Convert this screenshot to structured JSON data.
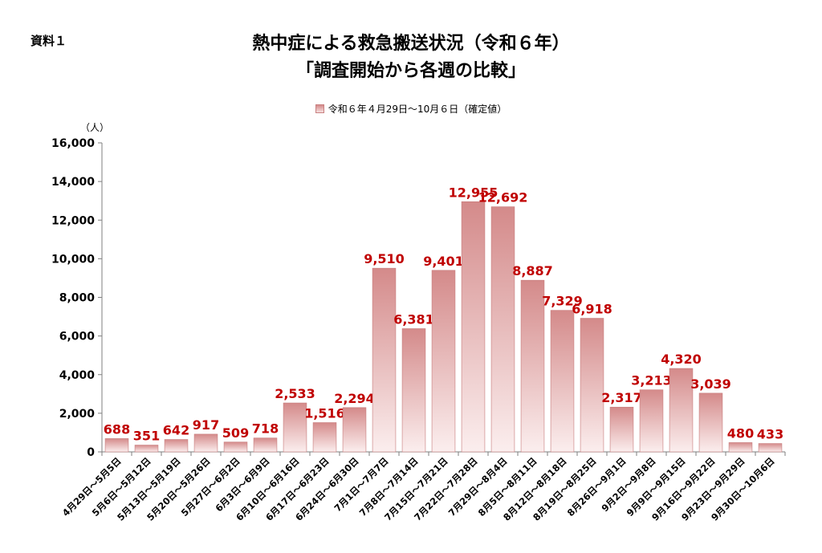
{
  "doc_label": "資料１",
  "title_line1": "熱中症による救急搬送状況（令和６年）",
  "title_line2": "「調査開始から各週の比較」",
  "legend": "令和６年４月29日～10月６日（確定値）",
  "unit_label": "（人）",
  "colors": {
    "bar_top": "#d48a8a",
    "bar_bottom": "#fbeeee",
    "bar_stroke": "#c77b7b",
    "value_label": "#c00000"
  },
  "chart_data": {
    "type": "bar",
    "ylim": [
      0,
      16000
    ],
    "yticks": [
      {
        "value": 0,
        "label": "0"
      },
      {
        "value": 2000,
        "label": "2,000"
      },
      {
        "value": 4000,
        "label": "4,000"
      },
      {
        "value": 6000,
        "label": "6,000"
      },
      {
        "value": 8000,
        "label": "8,000"
      },
      {
        "value": 10000,
        "label": "10,000"
      },
      {
        "value": 12000,
        "label": "12,000"
      },
      {
        "value": 14000,
        "label": "14,000"
      },
      {
        "value": 16000,
        "label": "16,000"
      }
    ],
    "grid": false,
    "legend_position": "top",
    "categories": [
      "4月29日～5月5日",
      "5月6日～5月12日",
      "5月13日～5月19日",
      "5月20日～5月26日",
      "5月27日～6月2日",
      "6月3日～6月9日",
      "6月10日～6月16日",
      "6月17日～6月23日",
      "6月24日～6月30日",
      "7月1日～7月7日",
      "7月8日～7月14日",
      "7月15日～7月21日",
      "7月22日～7月28日",
      "7月29日～8月4日",
      "8月5日～8月11日",
      "8月12日～8月18日",
      "8月19日～8月25日",
      "8月26日～9月1日",
      "9月2日～9月8日",
      "9月9日～9月15日",
      "9月16日～9月22日",
      "9月23日～9月29日",
      "9月30日～10月6日"
    ],
    "series": [
      {
        "name": "令和６年４月29日～10月６日（確定値）",
        "values": [
          688,
          351,
          642,
          917,
          509,
          718,
          2533,
          1516,
          2294,
          9510,
          6381,
          9401,
          12955,
          12692,
          8887,
          7329,
          6918,
          2317,
          3213,
          4320,
          3039,
          480,
          433
        ],
        "labels": [
          "688",
          "351",
          "642",
          "917",
          "509",
          "718",
          "2,533",
          "1,516",
          "2,294",
          "9,510",
          "6,381",
          "9,401",
          "12,955",
          "12,692",
          "8,887",
          "7,329",
          "6,918",
          "2,317",
          "3,213",
          "4,320",
          "3,039",
          "480",
          "433"
        ]
      }
    ]
  }
}
